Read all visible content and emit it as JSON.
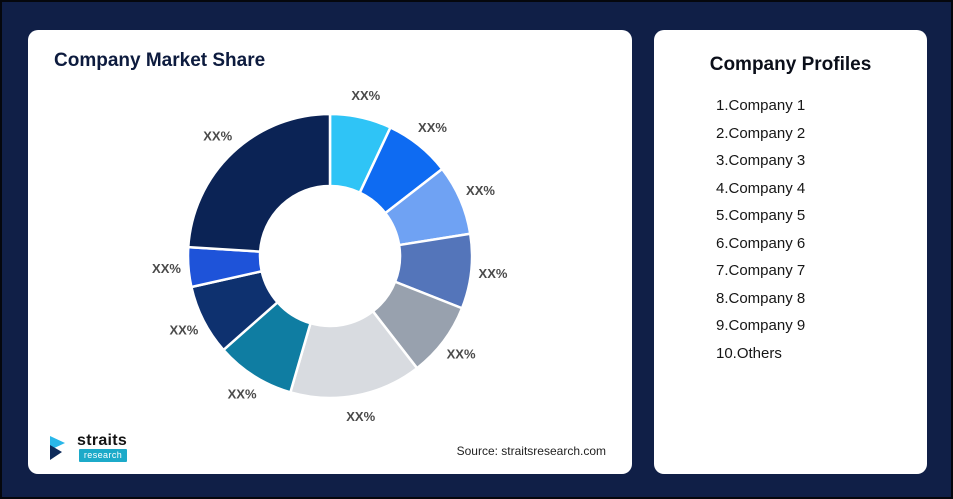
{
  "theme": {
    "background": "#101F47",
    "card": "#FFFFFF",
    "title_color": "#0D1B3E",
    "accent_teal": "#1CAAC9"
  },
  "left_card": {
    "title": "Company Market Share",
    "source": "Source: straitsresearch.com",
    "logo_text": "straits",
    "logo_subtext": "research"
  },
  "right_card": {
    "title": "Company Profiles",
    "items": [
      "1.Company 1",
      "2.Company 2",
      "3.Company 3",
      "4.Company 4",
      "5.Company 5",
      "6.Company 6",
      "7.Company 7",
      "8.Company 8",
      "9.Company 9",
      "10.Others"
    ]
  },
  "chart_data": {
    "type": "pie",
    "subtype": "donut",
    "title": "Company Market Share",
    "start_angle_deg": 0,
    "direction": "clockwise",
    "legend_position": "none",
    "value_note": "All slice data labels are masked as XX% in the source image; values are visual estimates of slice proportions (percent).",
    "segments": [
      {
        "label": "XX%",
        "value": 7,
        "color": "#2FC4F6"
      },
      {
        "label": "XX%",
        "value": 7.5,
        "color": "#0E6BF2"
      },
      {
        "label": "XX%",
        "value": 8,
        "color": "#6FA2F3"
      },
      {
        "label": "XX%",
        "value": 8.5,
        "color": "#5475BA"
      },
      {
        "label": "XX%",
        "value": 8.5,
        "color": "#98A1AE"
      },
      {
        "label": "XX%",
        "value": 15,
        "color": "#D8DBE0"
      },
      {
        "label": "XX%",
        "value": 9,
        "color": "#0F7DA2"
      },
      {
        "label": "XX%",
        "value": 8,
        "color": "#0E316F"
      },
      {
        "label": "XX%",
        "value": 4.5,
        "color": "#1E53D9"
      },
      {
        "label": "XX%",
        "value": 24,
        "color": "#0B2355"
      }
    ]
  }
}
